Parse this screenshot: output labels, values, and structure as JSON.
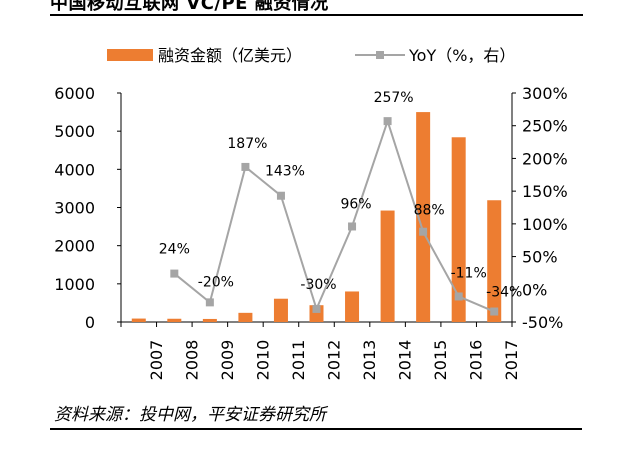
{
  "title": "中国移动互联网 VC/PE 融资情况",
  "source": "资料来源：投中网，平安证券研究所",
  "colors": {
    "bar": "#ED7D31",
    "line": "#A5A5A5",
    "text": "#000000"
  },
  "chart_data": {
    "type": "bar",
    "categories": [
      "2007",
      "2008",
      "2009",
      "2010",
      "2011",
      "2012",
      "2013",
      "2014",
      "2015",
      "2016",
      "2017"
    ],
    "series": [
      {
        "name": "融资金额（亿美元）",
        "type": "bar",
        "axis": "left",
        "values": [
          90,
          85,
          80,
          240,
          610,
          440,
          800,
          2920,
          5500,
          4840,
          3190
        ]
      },
      {
        "name": "YoY（%，右）",
        "type": "line",
        "axis": "right",
        "values": [
          null,
          24,
          -20,
          187,
          143,
          -30,
          96,
          257,
          88,
          -11,
          -34
        ],
        "labels": [
          "",
          "24%",
          "-20%",
          "187%",
          "143%",
          "-30%",
          "96%",
          "257%",
          "88%",
          "-11%",
          "-34%"
        ]
      }
    ],
    "ylim_left": [
      0,
      6000
    ],
    "yticks_left": [
      "0",
      "1000",
      "2000",
      "3000",
      "4000",
      "5000",
      "6000"
    ],
    "ylim_right": [
      -50,
      300
    ],
    "yticks_right": [
      "-50%",
      "0%",
      "50%",
      "100%",
      "150%",
      "200%",
      "250%",
      "300%"
    ],
    "legend_position": "top",
    "grid": false
  }
}
